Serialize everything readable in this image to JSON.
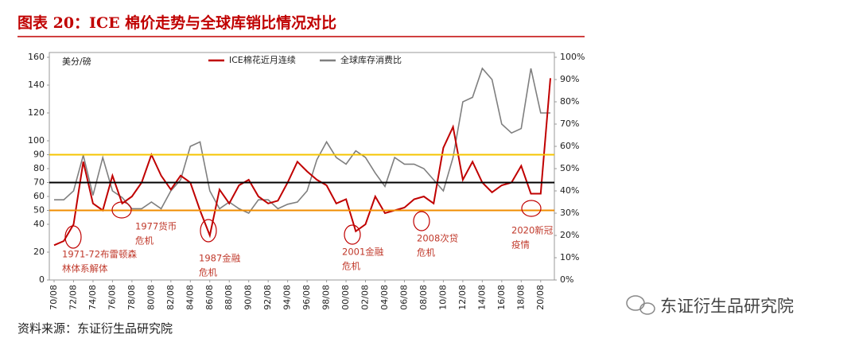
{
  "title": "图表 20：ICE 棉价走势与全球库销比情况对比",
  "source": "资料来源：东证衍生品研究院",
  "watermark": "东证衍生品研究院",
  "chart_data": {
    "type": "line",
    "y_label": "美分/磅",
    "categories": [
      "70/08",
      null,
      "72/08",
      null,
      "74/08",
      null,
      "76/08",
      null,
      "78/08",
      null,
      "80/08",
      null,
      "82/08",
      null,
      "84/08",
      null,
      "86/08",
      null,
      "88/08",
      null,
      "90/08",
      null,
      "92/08",
      null,
      "94/08",
      null,
      "96/08",
      null,
      "98/08",
      null,
      "00/08",
      null,
      "02/08",
      null,
      "04/08",
      null,
      "06/08",
      null,
      "08/08",
      null,
      "10/08",
      null,
      "12/08",
      null,
      "14/08",
      null,
      "16/08",
      null,
      "18/08",
      null,
      "20/08",
      null
    ],
    "series": [
      {
        "name": "ICE棉花近月连续",
        "color": "#c00000",
        "axis": "y",
        "values": [
          25,
          28,
          40,
          85,
          55,
          50,
          75,
          55,
          60,
          70,
          90,
          75,
          65,
          75,
          70,
          50,
          32,
          65,
          55,
          68,
          72,
          60,
          55,
          57,
          70,
          85,
          78,
          72,
          68,
          55,
          58,
          35,
          40,
          60,
          48,
          50,
          52,
          58,
          60,
          55,
          95,
          110,
          72,
          85,
          70,
          63,
          68,
          70,
          82,
          62,
          62,
          145
        ]
      },
      {
        "name": "全球库存消费比",
        "color": "#7f7f7f",
        "axis": "y2",
        "values": [
          36,
          36,
          40,
          56,
          38,
          55,
          40,
          37,
          32,
          32,
          35,
          32,
          40,
          45,
          60,
          62,
          40,
          32,
          35,
          32,
          30,
          36,
          36,
          32,
          34,
          35,
          40,
          54,
          62,
          55,
          52,
          58,
          55,
          48,
          42,
          55,
          52,
          52,
          50,
          45,
          40,
          55,
          80,
          82,
          95,
          90,
          70,
          66,
          68,
          95,
          75,
          75
        ]
      }
    ],
    "ylim": [
      0,
      160
    ],
    "yticks": [
      0,
      20,
      40,
      50,
      60,
      70,
      80,
      90,
      100,
      120,
      140,
      160
    ],
    "y2lim": [
      0,
      100
    ],
    "y2ticks": [
      {
        "value": 0,
        "label": "0%"
      },
      {
        "value": 10,
        "label": "10%"
      },
      {
        "value": 20,
        "label": "20%"
      },
      {
        "value": 30,
        "label": "30%"
      },
      {
        "value": 40,
        "label": "40%"
      },
      {
        "value": 50,
        "label": "50%"
      },
      {
        "value": 60,
        "label": "60%"
      },
      {
        "value": 70,
        "label": "70%"
      },
      {
        "value": 80,
        "label": "80%"
      },
      {
        "value": 90,
        "label": "90%"
      },
      {
        "value": 100,
        "label": "100%"
      }
    ],
    "hlines": [
      {
        "value": 90,
        "color": "#f5c400"
      },
      {
        "value": 70,
        "color": "#000000"
      },
      {
        "value": 50,
        "color": "#f08c00"
      }
    ],
    "annotations": [
      {
        "lines": [
          "1971-72布雷顿森",
          "林体系解体"
        ]
      },
      {
        "lines": [
          "1977货币",
          "危机"
        ]
      },
      {
        "lines": [
          "1987金融",
          "危机"
        ]
      },
      {
        "lines": [
          "2001金融",
          "危机"
        ]
      },
      {
        "lines": [
          "2008次贷",
          "危机"
        ]
      },
      {
        "lines": [
          "2020新冠",
          "疫情"
        ]
      }
    ],
    "legend": "top"
  }
}
